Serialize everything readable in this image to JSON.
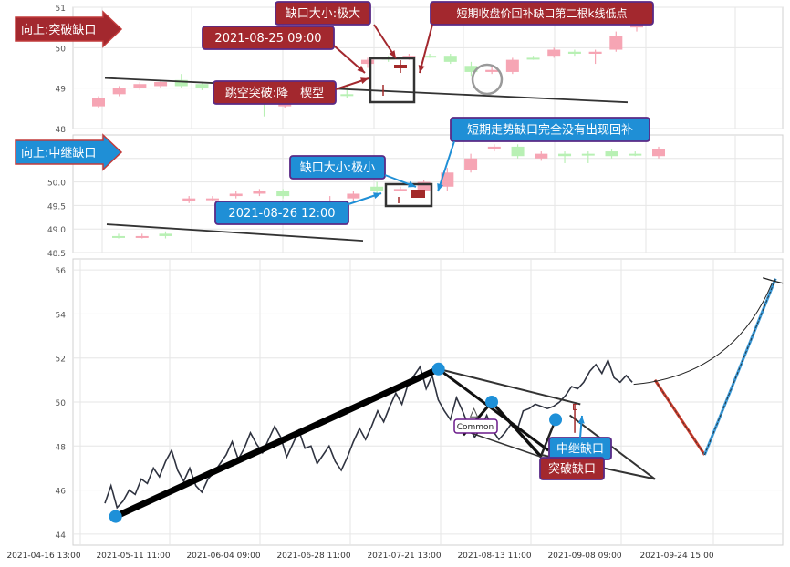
{
  "chart_data": [
    {
      "type": "candlestick",
      "panel": "top",
      "ylim": [
        48,
        51
      ],
      "yticks": [
        48,
        49,
        50,
        51
      ],
      "tag": "向上:突破缺口",
      "annotations": {
        "gap_size": "缺口大小:极大",
        "gap_time": "2021-08-25 09:00",
        "breakout": "跳空突破:降　楔型",
        "close_fill": "短期收盘价回补缺口第二根k线低点"
      },
      "trendline": [
        [
          0,
          49.25
        ],
        [
          1,
          48.65
        ]
      ],
      "candles": [
        [
          48.55,
          48.75,
          48.5,
          48.8,
          "up"
        ],
        [
          48.85,
          49.0,
          48.8,
          49.05,
          "up"
        ],
        [
          49.0,
          49.1,
          48.95,
          49.15,
          "up"
        ],
        [
          49.05,
          49.15,
          49.0,
          49.2,
          "up"
        ],
        [
          49.2,
          49.05,
          49.0,
          49.35,
          "down"
        ],
        [
          49.1,
          49.0,
          48.95,
          49.15,
          "down"
        ],
        [
          48.95,
          48.95,
          48.9,
          49.0,
          "down"
        ],
        [
          48.9,
          48.85,
          48.8,
          48.95,
          "down"
        ],
        [
          48.75,
          48.75,
          48.3,
          48.85,
          "down"
        ],
        [
          48.55,
          48.65,
          48.5,
          48.7,
          "up"
        ],
        [
          48.85,
          48.9,
          48.8,
          49.0,
          "up"
        ],
        [
          48.9,
          48.95,
          48.85,
          49.0,
          "up"
        ],
        [
          48.85,
          48.85,
          48.75,
          49.1,
          "down"
        ],
        [
          49.6,
          49.7,
          49.5,
          49.75,
          "up"
        ],
        [
          49.75,
          49.75,
          49.65,
          49.8,
          "down"
        ],
        [
          49.75,
          49.8,
          49.7,
          49.85,
          "up"
        ],
        [
          49.8,
          49.8,
          49.75,
          49.85,
          "down"
        ],
        [
          49.8,
          49.65,
          49.6,
          49.85,
          "down"
        ],
        [
          49.55,
          49.4,
          49.3,
          49.65,
          "down"
        ],
        [
          49.4,
          49.45,
          49.35,
          49.55,
          "up"
        ],
        [
          49.4,
          49.7,
          49.35,
          49.75,
          "up"
        ],
        [
          49.75,
          49.75,
          49.7,
          49.8,
          "down"
        ],
        [
          49.8,
          49.95,
          49.75,
          50.0,
          "up"
        ],
        [
          49.9,
          49.85,
          49.8,
          49.95,
          "down"
        ],
        [
          49.85,
          49.9,
          49.6,
          49.95,
          "up"
        ],
        [
          49.95,
          50.3,
          49.9,
          50.4,
          "up"
        ],
        [
          50.5,
          50.85,
          50.4,
          51.0,
          "up"
        ]
      ]
    },
    {
      "type": "candlestick",
      "panel": "middle",
      "ylim": [
        48.5,
        51.0
      ],
      "yticks": [
        48.5,
        49.0,
        49.5,
        50.0,
        50.5
      ],
      "tag": "向上:中继缺口",
      "annotations": {
        "gap_size": "缺口大小:极小",
        "gap_time": "2021-08-26 12:00",
        "no_fill": "短期走势缺口完全没有出现回补"
      },
      "trendline": [
        [
          0,
          49.1
        ],
        [
          1,
          48.75
        ]
      ],
      "candles": [
        [
          48.85,
          48.85,
          48.8,
          48.9,
          "down"
        ],
        [
          48.85,
          48.85,
          48.8,
          48.9,
          "up"
        ],
        [
          48.9,
          48.85,
          48.8,
          48.95,
          "down"
        ],
        [
          49.6,
          49.65,
          49.55,
          49.7,
          "up"
        ],
        [
          49.65,
          49.65,
          49.6,
          49.7,
          "up"
        ],
        [
          49.7,
          49.75,
          49.65,
          49.8,
          "up"
        ],
        [
          49.75,
          49.8,
          49.7,
          49.85,
          "up"
        ],
        [
          49.8,
          49.7,
          49.65,
          49.85,
          "down"
        ],
        [
          49.55,
          49.4,
          49.35,
          49.6,
          "down"
        ],
        [
          49.35,
          49.55,
          49.3,
          49.7,
          "up"
        ],
        [
          49.65,
          49.75,
          49.6,
          49.8,
          "up"
        ],
        [
          49.9,
          49.8,
          49.75,
          50.0,
          "down"
        ],
        [
          49.85,
          49.85,
          49.8,
          49.9,
          "up"
        ],
        [
          49.8,
          50.0,
          49.75,
          50.05,
          "up"
        ],
        [
          49.9,
          50.2,
          49.8,
          50.3,
          "up"
        ],
        [
          50.25,
          50.5,
          50.2,
          50.6,
          "up"
        ],
        [
          50.7,
          50.75,
          50.65,
          50.8,
          "up"
        ],
        [
          50.75,
          50.55,
          50.5,
          50.8,
          "down"
        ],
        [
          50.5,
          50.6,
          50.45,
          50.65,
          "up"
        ],
        [
          50.6,
          50.55,
          50.4,
          50.65,
          "down"
        ],
        [
          50.6,
          50.6,
          50.4,
          50.65,
          "down"
        ],
        [
          50.65,
          50.55,
          50.5,
          50.7,
          "down"
        ],
        [
          50.6,
          50.6,
          50.55,
          50.65,
          "down"
        ],
        [
          50.55,
          50.7,
          50.5,
          50.75,
          "up"
        ]
      ]
    },
    {
      "type": "line",
      "panel": "bottom",
      "ylim": [
        43.5,
        56.5
      ],
      "yticks": [
        44,
        46,
        48,
        50,
        52,
        54,
        56
      ],
      "x_labels": [
        "2021-04-16 13:00",
        "2021-05-11 11:00",
        "2021-06-04 09:00",
        "2021-06-28 11:00",
        "2021-07-21 13:00",
        "2021-08-13 11:00",
        "2021-09-08 09:00",
        "2021-09-24 15:00"
      ],
      "price": [
        45.4,
        46.2,
        45.2,
        45.5,
        46.0,
        45.8,
        46.5,
        46.3,
        47.0,
        46.6,
        47.3,
        47.8,
        46.9,
        46.4,
        47.0,
        46.2,
        45.9,
        46.5,
        46.8,
        47.2,
        47.6,
        48.2,
        47.4,
        47.9,
        48.6,
        48.1,
        47.7,
        48.3,
        48.9,
        48.4,
        47.5,
        48.1,
        48.7,
        47.9,
        48.0,
        47.2,
        47.6,
        48.0,
        47.3,
        46.9,
        47.5,
        48.2,
        48.8,
        48.3,
        48.9,
        49.6,
        49.1,
        49.8,
        50.4,
        49.9,
        50.8,
        51.2,
        51.6,
        50.6,
        51.2,
        50.1,
        49.6,
        49.2,
        50.2,
        49.6,
        48.9,
        48.4,
        48.8,
        49.4,
        48.7,
        48.3,
        48.6,
        49.0,
        48.7,
        49.6,
        49.7,
        49.9,
        49.8,
        49.7,
        49.8,
        50.0,
        50.3,
        50.7,
        50.6,
        50.9,
        51.4,
        51.7,
        51.3,
        51.9,
        51.1,
        50.9,
        51.2,
        50.9
      ],
      "zigzag": [
        [
          0.06,
          44.8
        ],
        [
          0.515,
          51.5
        ],
        [
          0.59,
          50.0
        ],
        [
          0.68,
          49.2
        ],
        [
          0.715,
          49.9
        ]
      ],
      "pivot_label": "Common",
      "tag_relay": "中继缺口",
      "tag_breakout": "突破缺口",
      "projection_down": [
        [
          0.82,
          51.0
        ],
        [
          0.89,
          47.6
        ]
      ],
      "projection_up": [
        [
          0.89,
          47.6
        ],
        [
          0.99,
          55.6
        ]
      ]
    }
  ]
}
